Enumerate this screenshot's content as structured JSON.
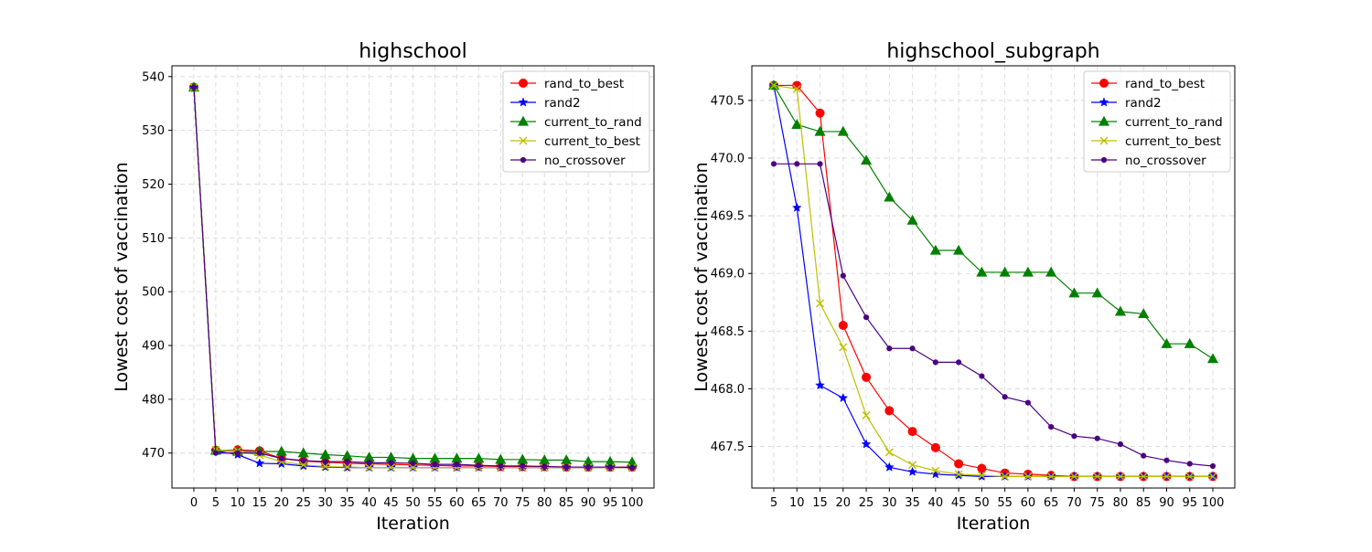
{
  "chart_data": [
    {
      "type": "line",
      "title": "highschool",
      "xlabel": "Iteration",
      "ylabel": "Lowest cost of vaccination",
      "x": [
        0,
        5,
        10,
        15,
        20,
        25,
        30,
        35,
        40,
        45,
        50,
        55,
        60,
        65,
        70,
        75,
        80,
        85,
        90,
        95,
        100
      ],
      "xlim": [
        -5,
        105
      ],
      "ylim": [
        463.5,
        542
      ],
      "yticks": [
        470,
        480,
        490,
        500,
        510,
        520,
        530,
        540
      ],
      "grid": true,
      "legend_position": "top-right",
      "series": [
        {
          "name": "rand_to_best",
          "color": "#ff0000",
          "marker": "circle",
          "values": [
            538.0,
            470.5,
            470.6,
            470.4,
            469.0,
            468.5,
            468.3,
            468.1,
            468.0,
            467.9,
            467.8,
            467.7,
            467.6,
            467.6,
            467.5,
            467.5,
            467.5,
            467.4,
            467.4,
            467.4,
            467.4
          ]
        },
        {
          "name": "rand2",
          "color": "#0000ff",
          "marker": "star",
          "values": [
            538.0,
            470.4,
            469.7,
            468.1,
            468.0,
            467.6,
            467.4,
            467.3,
            467.3,
            467.3,
            467.3,
            467.3,
            467.3,
            467.3,
            467.3,
            467.3,
            467.3,
            467.3,
            467.3,
            467.3,
            467.3
          ]
        },
        {
          "name": "current_to_rand",
          "color": "#008000",
          "marker": "triangle",
          "values": [
            538.0,
            470.5,
            470.3,
            470.3,
            470.3,
            470.0,
            469.7,
            469.5,
            469.2,
            469.2,
            469.0,
            469.0,
            469.0,
            469.0,
            468.8,
            468.8,
            468.7,
            468.7,
            468.4,
            468.4,
            468.3
          ]
        },
        {
          "name": "current_to_best",
          "color": "#bfbf00",
          "marker": "x",
          "values": [
            538.0,
            470.6,
            470.4,
            469.6,
            468.4,
            467.8,
            467.5,
            467.4,
            467.3,
            467.3,
            467.3,
            467.3,
            467.3,
            467.3,
            467.3,
            467.3,
            467.3,
            467.3,
            467.3,
            467.3,
            467.3
          ]
        },
        {
          "name": "no_crossover",
          "color": "#4b0082",
          "marker": "dot",
          "values": [
            538.0,
            470.0,
            470.0,
            470.0,
            469.0,
            468.6,
            468.4,
            468.4,
            468.2,
            468.2,
            468.1,
            467.9,
            467.9,
            467.7,
            467.6,
            467.6,
            467.5,
            467.4,
            467.4,
            467.4,
            467.3
          ]
        }
      ]
    },
    {
      "type": "line",
      "title": "highschool_subgraph",
      "xlabel": "Iteration",
      "ylabel": "Lowest cost of vaccination",
      "x": [
        5,
        10,
        15,
        20,
        25,
        30,
        35,
        40,
        45,
        50,
        55,
        60,
        65,
        70,
        75,
        80,
        85,
        90,
        95,
        100
      ],
      "xlim": [
        0.25,
        104.75
      ],
      "ylim": [
        467.14,
        470.8
      ],
      "yticks": [
        467.5,
        468.0,
        468.5,
        469.0,
        469.5,
        470.0,
        470.5
      ],
      "grid": true,
      "legend_position": "top-right",
      "series": [
        {
          "name": "rand_to_best",
          "color": "#ff0000",
          "marker": "circle",
          "values": [
            470.63,
            470.63,
            470.39,
            468.55,
            468.1,
            467.81,
            467.63,
            467.49,
            467.35,
            467.31,
            467.27,
            467.26,
            467.25,
            467.24,
            467.24,
            467.24,
            467.24,
            467.24,
            467.24,
            467.24
          ]
        },
        {
          "name": "rand2",
          "color": "#0000ff",
          "marker": "star",
          "values": [
            470.63,
            469.57,
            468.03,
            467.92,
            467.52,
            467.32,
            467.28,
            467.26,
            467.25,
            467.24,
            467.24,
            467.24,
            467.24,
            467.24,
            467.24,
            467.24,
            467.24,
            467.24,
            467.24,
            467.24
          ]
        },
        {
          "name": "current_to_rand",
          "color": "#008000",
          "marker": "triangle",
          "values": [
            470.63,
            470.29,
            470.23,
            470.23,
            469.98,
            469.66,
            469.46,
            469.2,
            469.2,
            469.01,
            469.01,
            469.01,
            469.01,
            468.83,
            468.83,
            468.67,
            468.65,
            468.39,
            468.39,
            468.26
          ]
        },
        {
          "name": "current_to_best",
          "color": "#bfbf00",
          "marker": "x",
          "values": [
            470.63,
            470.6,
            468.74,
            468.36,
            467.77,
            467.45,
            467.34,
            467.29,
            467.26,
            467.25,
            467.24,
            467.24,
            467.24,
            467.24,
            467.24,
            467.24,
            467.24,
            467.24,
            467.24,
            467.24
          ]
        },
        {
          "name": "no_crossover",
          "color": "#4b0082",
          "marker": "dot",
          "values": [
            469.95,
            469.95,
            469.95,
            468.98,
            468.62,
            468.35,
            468.35,
            468.23,
            468.23,
            468.11,
            467.93,
            467.88,
            467.67,
            467.59,
            467.57,
            467.52,
            467.42,
            467.38,
            467.35,
            467.33
          ]
        }
      ]
    }
  ]
}
